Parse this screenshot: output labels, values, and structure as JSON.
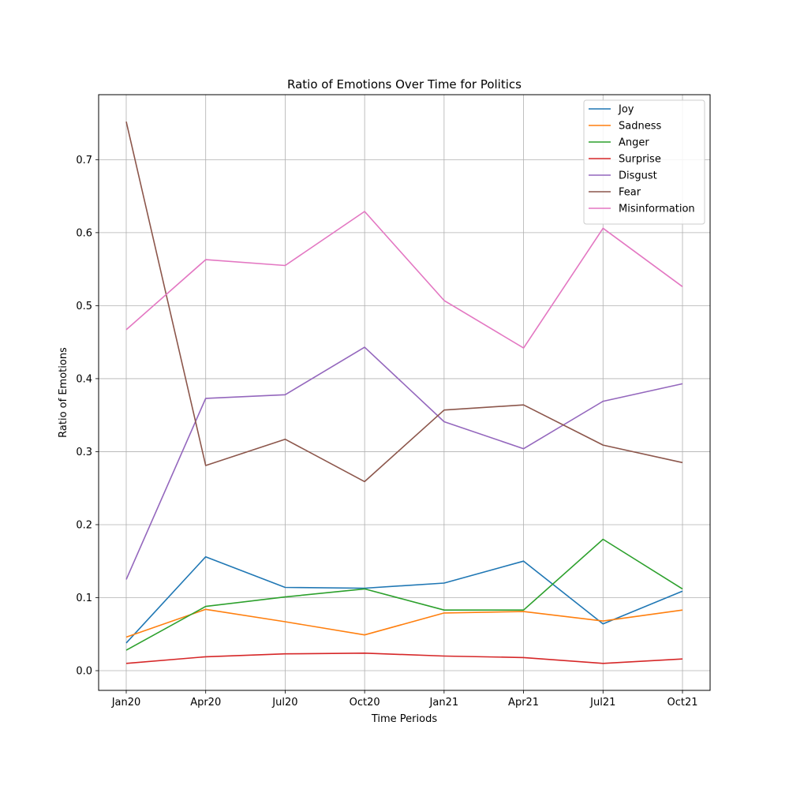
{
  "chart_data": {
    "type": "line",
    "title": "Ratio of Emotions Over Time for Politics",
    "xlabel": "Time Periods",
    "ylabel": "Ratio of Emotions",
    "categories": [
      "Jan20",
      "Apr20",
      "Jul20",
      "Oct20",
      "Jan21",
      "Apr21",
      "Jul21",
      "Oct21"
    ],
    "ylim": [
      -0.027,
      0.789
    ],
    "yticks": [
      "0.0",
      "0.1",
      "0.2",
      "0.3",
      "0.4",
      "0.5",
      "0.6",
      "0.7"
    ],
    "grid": true,
    "legend_position": "top-right",
    "series": [
      {
        "name": "Joy",
        "color": "#1f77b4",
        "values": [
          0.038,
          0.156,
          0.114,
          0.113,
          0.12,
          0.15,
          0.064,
          0.109
        ]
      },
      {
        "name": "Sadness",
        "color": "#ff7f0e",
        "values": [
          0.046,
          0.084,
          0.067,
          0.049,
          0.079,
          0.081,
          0.068,
          0.083
        ]
      },
      {
        "name": "Anger",
        "color": "#2ca02c",
        "values": [
          0.028,
          0.088,
          0.101,
          0.112,
          0.083,
          0.083,
          0.18,
          0.112
        ]
      },
      {
        "name": "Surprise",
        "color": "#d62728",
        "values": [
          0.01,
          0.019,
          0.023,
          0.024,
          0.02,
          0.018,
          0.01,
          0.016
        ]
      },
      {
        "name": "Disgust",
        "color": "#9467bd",
        "values": [
          0.125,
          0.373,
          0.378,
          0.443,
          0.341,
          0.304,
          0.369,
          0.393
        ]
      },
      {
        "name": "Fear",
        "color": "#8c564b",
        "values": [
          0.752,
          0.281,
          0.317,
          0.259,
          0.357,
          0.364,
          0.309,
          0.285
        ]
      },
      {
        "name": "Misinformation",
        "color": "#e377c2",
        "values": [
          0.467,
          0.563,
          0.555,
          0.629,
          0.507,
          0.442,
          0.606,
          0.526
        ]
      }
    ]
  }
}
